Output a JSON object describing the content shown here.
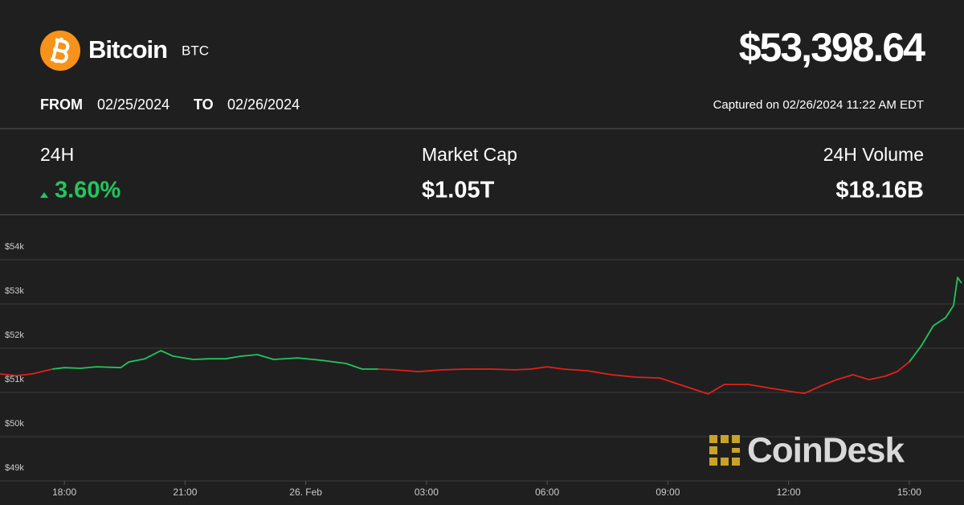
{
  "header": {
    "name": "Bitcoin",
    "symbol": "BTC",
    "price": "$53,398.64",
    "from_label": "FROM",
    "from_date": "02/25/2024",
    "to_label": "TO",
    "to_date": "02/26/2024",
    "captured": "Captured on 02/26/2024 11:22 AM EDT"
  },
  "stats": [
    {
      "label": "24H",
      "value": "3.60%"
    },
    {
      "label": "Market Cap",
      "value": "$1.05T"
    },
    {
      "label": "24H Volume",
      "value": "$18.16B"
    }
  ],
  "watermark": "CoinDesk",
  "chart_data": {
    "type": "line",
    "x": [
      -7.6,
      -7.2,
      -6.8,
      -6.3,
      -6.0,
      -5.6,
      -5.2,
      -4.6,
      -4.4,
      -4.0,
      -3.6,
      -3.3,
      -2.8,
      -2.4,
      -2.0,
      -1.6,
      -1.2,
      -0.8,
      -0.2,
      0.4,
      1.0,
      1.4,
      1.8,
      2.2,
      2.8,
      3.4,
      4.0,
      4.6,
      5.2,
      5.6,
      6.0,
      6.4,
      7.0,
      7.6,
      8.2,
      8.8,
      9.4,
      10.0,
      10.4,
      11.0,
      11.6,
      12.2,
      12.4,
      12.8,
      13.2,
      13.6,
      14.0,
      14.4,
      14.7,
      15.0,
      15.3,
      15.6,
      15.9,
      16.1,
      16.2,
      16.3
    ],
    "series": [
      {
        "color": "#22c55e",
        "values": [
          null,
          null,
          null,
          51527,
          51560,
          51545,
          51580,
          51560,
          51690,
          51760,
          51945,
          51820,
          51745,
          51760,
          51760,
          51820,
          51855,
          51745,
          51780,
          51725,
          51655,
          51527,
          51527,
          null,
          null,
          null,
          null,
          null,
          null,
          null,
          null,
          null,
          null,
          null,
          null,
          null,
          null,
          null,
          null,
          null,
          null,
          null,
          null,
          null,
          null,
          null,
          null,
          null,
          null,
          51690,
          52055,
          52510,
          52690,
          52965,
          53600,
          53470
        ]
      },
      {
        "color": "#e3201b",
        "values": [
          51418,
          51380,
          51418,
          51527,
          null,
          null,
          null,
          null,
          null,
          null,
          null,
          null,
          null,
          null,
          null,
          null,
          null,
          null,
          null,
          null,
          null,
          null,
          51527,
          51510,
          51470,
          51510,
          51527,
          51527,
          51510,
          51527,
          51580,
          51527,
          51490,
          51400,
          51345,
          51325,
          51145,
          50965,
          51180,
          51180,
          51090,
          51000,
          50980,
          51145,
          51290,
          51400,
          51290,
          51365,
          51470,
          51690,
          null,
          null,
          null,
          null,
          null,
          null
        ]
      }
    ],
    "xlim": [
      -7.6,
      16.36
    ],
    "xticks": [
      {
        "value": -6,
        "label": "18:00"
      },
      {
        "value": -3,
        "label": "21:00"
      },
      {
        "value": 0,
        "label": "26. Feb"
      },
      {
        "value": 3,
        "label": "03:00"
      },
      {
        "value": 6,
        "label": "06:00"
      },
      {
        "value": 9,
        "label": "09:00"
      },
      {
        "value": 12,
        "label": "12:00"
      },
      {
        "value": 15,
        "label": "15:00"
      }
    ],
    "ylim": [
      49000,
      55000
    ],
    "yticks": [
      {
        "value": 49000,
        "label": "$49k"
      },
      {
        "value": 50000,
        "label": "$50k"
      },
      {
        "value": 51000,
        "label": "$51k"
      },
      {
        "value": 52000,
        "label": "$52k"
      },
      {
        "value": 53000,
        "label": "$53k"
      },
      {
        "value": 54000,
        "label": "$54k"
      }
    ],
    "grid": true
  }
}
